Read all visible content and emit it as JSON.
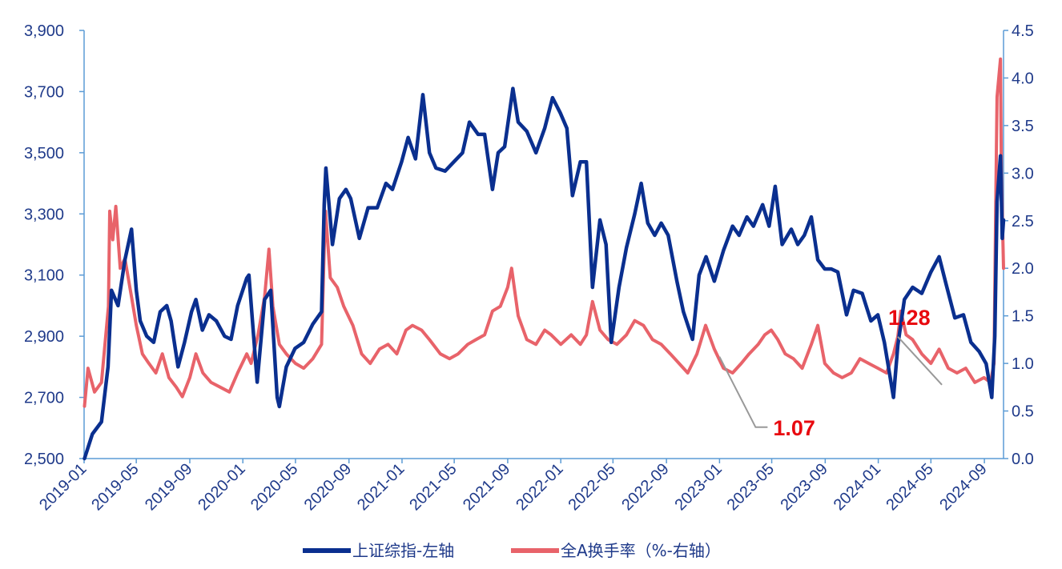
{
  "chart_data": {
    "type": "line",
    "title": "",
    "xlabel": "",
    "ylabel": "",
    "y2label": "",
    "x_range": [
      "2019-01",
      "2024-10"
    ],
    "x_ticks": [
      "2019-01",
      "2019-05",
      "2019-09",
      "2020-01",
      "2020-05",
      "2020-09",
      "2021-01",
      "2021-05",
      "2021-09",
      "2022-01",
      "2022-05",
      "2022-09",
      "2023-01",
      "2023-05",
      "2023-09",
      "2024-01",
      "2024-05",
      "2024-09"
    ],
    "ylim": [
      2500,
      3900
    ],
    "y_ticks": [
      2500,
      2700,
      2900,
      3100,
      3300,
      3500,
      3700,
      3900
    ],
    "y_tick_labels": [
      "2,500",
      "2,700",
      "2,900",
      "3,100",
      "3,300",
      "3,500",
      "3,700",
      "3,900"
    ],
    "y2lim": [
      0.0,
      4.5
    ],
    "y2_ticks": [
      0.0,
      0.5,
      1.0,
      1.5,
      2.0,
      2.5,
      3.0,
      3.5,
      4.0,
      4.5
    ],
    "y2_tick_labels": [
      "0.0",
      "0.5",
      "1.0",
      "1.5",
      "2.0",
      "2.5",
      "3.0",
      "3.5",
      "4.0",
      "4.5"
    ],
    "grid": false,
    "legend_position": "bottom",
    "series": [
      {
        "name": "上证综指-左轴",
        "axis": "left",
        "color": "#0a2f8f",
        "points": [
          [
            "2019-01-02",
            2500
          ],
          [
            "2019-01-20",
            2580
          ],
          [
            "2019-02-10",
            2620
          ],
          [
            "2019-02-25",
            2800
          ],
          [
            "2019-03-05",
            3050
          ],
          [
            "2019-03-20",
            3000
          ],
          [
            "2019-04-05",
            3150
          ],
          [
            "2019-04-20",
            3250
          ],
          [
            "2019-05-01",
            3050
          ],
          [
            "2019-05-10",
            2950
          ],
          [
            "2019-05-25",
            2900
          ],
          [
            "2019-06-10",
            2880
          ],
          [
            "2019-06-25",
            2980
          ],
          [
            "2019-07-10",
            3000
          ],
          [
            "2019-07-20",
            2950
          ],
          [
            "2019-08-05",
            2800
          ],
          [
            "2019-08-20",
            2880
          ],
          [
            "2019-09-05",
            2980
          ],
          [
            "2019-09-15",
            3020
          ],
          [
            "2019-09-30",
            2920
          ],
          [
            "2019-10-15",
            2970
          ],
          [
            "2019-11-01",
            2950
          ],
          [
            "2019-11-20",
            2900
          ],
          [
            "2019-12-05",
            2890
          ],
          [
            "2019-12-20",
            3000
          ],
          [
            "2020-01-10",
            3090
          ],
          [
            "2020-01-15",
            3100
          ],
          [
            "2020-02-03",
            2750
          ],
          [
            "2020-02-20",
            3020
          ],
          [
            "2020-03-05",
            3050
          ],
          [
            "2020-03-20",
            2700
          ],
          [
            "2020-03-25",
            2670
          ],
          [
            "2020-04-10",
            2800
          ],
          [
            "2020-04-30",
            2860
          ],
          [
            "2020-05-20",
            2880
          ],
          [
            "2020-06-10",
            2940
          ],
          [
            "2020-06-30",
            2980
          ],
          [
            "2020-07-06",
            3330
          ],
          [
            "2020-07-10",
            3450
          ],
          [
            "2020-07-25",
            3200
          ],
          [
            "2020-08-10",
            3350
          ],
          [
            "2020-08-25",
            3380
          ],
          [
            "2020-09-05",
            3350
          ],
          [
            "2020-09-25",
            3220
          ],
          [
            "2020-10-15",
            3320
          ],
          [
            "2020-11-05",
            3320
          ],
          [
            "2020-11-25",
            3400
          ],
          [
            "2020-12-10",
            3380
          ],
          [
            "2020-12-31",
            3470
          ],
          [
            "2021-01-15",
            3550
          ],
          [
            "2021-02-01",
            3480
          ],
          [
            "2021-02-18",
            3690
          ],
          [
            "2021-03-05",
            3500
          ],
          [
            "2021-03-20",
            3450
          ],
          [
            "2021-04-10",
            3440
          ],
          [
            "2021-04-30",
            3470
          ],
          [
            "2021-05-20",
            3500
          ],
          [
            "2021-06-05",
            3600
          ],
          [
            "2021-06-25",
            3560
          ],
          [
            "2021-07-10",
            3560
          ],
          [
            "2021-07-28",
            3380
          ],
          [
            "2021-08-10",
            3500
          ],
          [
            "2021-08-25",
            3520
          ],
          [
            "2021-09-13",
            3710
          ],
          [
            "2021-09-25",
            3600
          ],
          [
            "2021-10-15",
            3570
          ],
          [
            "2021-11-05",
            3500
          ],
          [
            "2021-11-25",
            3580
          ],
          [
            "2021-12-13",
            3680
          ],
          [
            "2021-12-31",
            3630
          ],
          [
            "2022-01-15",
            3580
          ],
          [
            "2022-01-28",
            3360
          ],
          [
            "2022-02-15",
            3470
          ],
          [
            "2022-03-01",
            3470
          ],
          [
            "2022-03-15",
            3060
          ],
          [
            "2022-04-01",
            3280
          ],
          [
            "2022-04-15",
            3200
          ],
          [
            "2022-04-27",
            2880
          ],
          [
            "2022-05-15",
            3060
          ],
          [
            "2022-06-01",
            3190
          ],
          [
            "2022-06-20",
            3300
          ],
          [
            "2022-07-05",
            3400
          ],
          [
            "2022-07-20",
            3270
          ],
          [
            "2022-08-05",
            3230
          ],
          [
            "2022-08-20",
            3270
          ],
          [
            "2022-09-05",
            3230
          ],
          [
            "2022-09-25",
            3080
          ],
          [
            "2022-10-10",
            2980
          ],
          [
            "2022-10-31",
            2890
          ],
          [
            "2022-11-15",
            3100
          ],
          [
            "2022-12-01",
            3160
          ],
          [
            "2022-12-20",
            3080
          ],
          [
            "2023-01-10",
            3180
          ],
          [
            "2023-01-31",
            3260
          ],
          [
            "2023-02-15",
            3230
          ],
          [
            "2023-03-05",
            3290
          ],
          [
            "2023-03-20",
            3260
          ],
          [
            "2023-04-10",
            3330
          ],
          [
            "2023-04-25",
            3260
          ],
          [
            "2023-05-09",
            3390
          ],
          [
            "2023-05-25",
            3200
          ],
          [
            "2023-06-15",
            3250
          ],
          [
            "2023-06-30",
            3200
          ],
          [
            "2023-07-15",
            3230
          ],
          [
            "2023-07-31",
            3290
          ],
          [
            "2023-08-15",
            3150
          ],
          [
            "2023-08-31",
            3120
          ],
          [
            "2023-09-15",
            3120
          ],
          [
            "2023-09-30",
            3110
          ],
          [
            "2023-10-20",
            2970
          ],
          [
            "2023-11-05",
            3050
          ],
          [
            "2023-11-25",
            3040
          ],
          [
            "2023-12-15",
            2950
          ],
          [
            "2023-12-31",
            2970
          ],
          [
            "2024-01-15",
            2880
          ],
          [
            "2024-02-05",
            2700
          ],
          [
            "2024-02-15",
            2870
          ],
          [
            "2024-03-01",
            3020
          ],
          [
            "2024-03-20",
            3060
          ],
          [
            "2024-04-10",
            3040
          ],
          [
            "2024-05-01",
            3110
          ],
          [
            "2024-05-20",
            3160
          ],
          [
            "2024-06-05",
            3070
          ],
          [
            "2024-06-25",
            2960
          ],
          [
            "2024-07-15",
            2970
          ],
          [
            "2024-08-01",
            2880
          ],
          [
            "2024-08-20",
            2850
          ],
          [
            "2024-09-05",
            2810
          ],
          [
            "2024-09-18",
            2700
          ],
          [
            "2024-09-25",
            2900
          ],
          [
            "2024-09-30",
            3340
          ],
          [
            "2024-10-08",
            3490
          ],
          [
            "2024-10-12",
            3220
          ],
          [
            "2024-10-15",
            3280
          ]
        ]
      },
      {
        "name": "全A换手率（%-右轴）",
        "axis": "right",
        "color": "#e8636a",
        "points": [
          [
            "2019-01-02",
            0.55
          ],
          [
            "2019-01-10",
            0.95
          ],
          [
            "2019-01-25",
            0.7
          ],
          [
            "2019-02-10",
            0.8
          ],
          [
            "2019-02-26",
            1.6
          ],
          [
            "2019-03-01",
            2.6
          ],
          [
            "2019-03-08",
            2.3
          ],
          [
            "2019-03-15",
            2.65
          ],
          [
            "2019-03-25",
            2.0
          ],
          [
            "2019-04-05",
            2.1
          ],
          [
            "2019-04-20",
            1.7
          ],
          [
            "2019-05-01",
            1.4
          ],
          [
            "2019-05-15",
            1.1
          ],
          [
            "2019-05-30",
            1.0
          ],
          [
            "2019-06-15",
            0.9
          ],
          [
            "2019-06-30",
            1.1
          ],
          [
            "2019-07-15",
            0.85
          ],
          [
            "2019-08-01",
            0.75
          ],
          [
            "2019-08-15",
            0.65
          ],
          [
            "2019-09-01",
            0.85
          ],
          [
            "2019-09-15",
            1.1
          ],
          [
            "2019-10-01",
            0.9
          ],
          [
            "2019-10-20",
            0.8
          ],
          [
            "2019-11-10",
            0.75
          ],
          [
            "2019-12-01",
            0.7
          ],
          [
            "2019-12-20",
            0.9
          ],
          [
            "2020-01-10",
            1.1
          ],
          [
            "2020-01-20",
            1.0
          ],
          [
            "2020-02-05",
            1.3
          ],
          [
            "2020-02-20",
            1.7
          ],
          [
            "2020-03-01",
            2.2
          ],
          [
            "2020-03-10",
            1.6
          ],
          [
            "2020-03-25",
            1.2
          ],
          [
            "2020-04-10",
            1.1
          ],
          [
            "2020-05-01",
            1.0
          ],
          [
            "2020-05-20",
            0.95
          ],
          [
            "2020-06-10",
            1.05
          ],
          [
            "2020-06-30",
            1.2
          ],
          [
            "2020-07-06",
            2.2
          ],
          [
            "2020-07-09",
            2.6
          ],
          [
            "2020-07-20",
            1.9
          ],
          [
            "2020-08-05",
            1.8
          ],
          [
            "2020-08-20",
            1.6
          ],
          [
            "2020-09-10",
            1.4
          ],
          [
            "2020-09-30",
            1.1
          ],
          [
            "2020-10-20",
            1.0
          ],
          [
            "2020-11-10",
            1.15
          ],
          [
            "2020-11-30",
            1.2
          ],
          [
            "2020-12-20",
            1.1
          ],
          [
            "2021-01-10",
            1.35
          ],
          [
            "2021-01-25",
            1.4
          ],
          [
            "2021-02-15",
            1.35
          ],
          [
            "2021-03-05",
            1.25
          ],
          [
            "2021-03-30",
            1.1
          ],
          [
            "2021-04-20",
            1.05
          ],
          [
            "2021-05-10",
            1.1
          ],
          [
            "2021-06-01",
            1.2
          ],
          [
            "2021-06-20",
            1.25
          ],
          [
            "2021-07-10",
            1.3
          ],
          [
            "2021-07-28",
            1.55
          ],
          [
            "2021-08-15",
            1.6
          ],
          [
            "2021-09-01",
            1.8
          ],
          [
            "2021-09-10",
            2.0
          ],
          [
            "2021-09-25",
            1.5
          ],
          [
            "2021-10-15",
            1.25
          ],
          [
            "2021-11-05",
            1.2
          ],
          [
            "2021-11-25",
            1.35
          ],
          [
            "2021-12-10",
            1.3
          ],
          [
            "2022-01-01",
            1.2
          ],
          [
            "2022-01-25",
            1.3
          ],
          [
            "2022-02-15",
            1.2
          ],
          [
            "2022-03-01",
            1.3
          ],
          [
            "2022-03-15",
            1.65
          ],
          [
            "2022-04-01",
            1.35
          ],
          [
            "2022-04-20",
            1.25
          ],
          [
            "2022-05-10",
            1.2
          ],
          [
            "2022-06-01",
            1.3
          ],
          [
            "2022-06-20",
            1.45
          ],
          [
            "2022-07-10",
            1.4
          ],
          [
            "2022-07-31",
            1.25
          ],
          [
            "2022-08-20",
            1.2
          ],
          [
            "2022-09-10",
            1.1
          ],
          [
            "2022-09-30",
            1.0
          ],
          [
            "2022-10-20",
            0.9
          ],
          [
            "2022-11-10",
            1.1
          ],
          [
            "2022-11-30",
            1.4
          ],
          [
            "2022-12-20",
            1.15
          ],
          [
            "2023-01-10",
            0.95
          ],
          [
            "2023-01-31",
            0.9
          ],
          [
            "2023-02-20",
            1.0
          ],
          [
            "2023-03-10",
            1.1
          ],
          [
            "2023-03-31",
            1.2
          ],
          [
            "2023-04-15",
            1.3
          ],
          [
            "2023-04-30",
            1.35
          ],
          [
            "2023-05-15",
            1.25
          ],
          [
            "2023-06-01",
            1.1
          ],
          [
            "2023-06-20",
            1.05
          ],
          [
            "2023-07-10",
            0.95
          ],
          [
            "2023-07-31",
            1.2
          ],
          [
            "2023-08-15",
            1.4
          ],
          [
            "2023-08-31",
            1.0
          ],
          [
            "2023-09-20",
            0.9
          ],
          [
            "2023-10-10",
            0.85
          ],
          [
            "2023-10-31",
            0.9
          ],
          [
            "2023-11-20",
            1.05
          ],
          [
            "2023-12-10",
            1.0
          ],
          [
            "2023-12-31",
            0.95
          ],
          [
            "2024-01-20",
            0.9
          ],
          [
            "2024-02-05",
            1.1
          ],
          [
            "2024-02-15",
            1.28
          ],
          [
            "2024-02-22",
            1.55
          ],
          [
            "2024-03-05",
            1.3
          ],
          [
            "2024-03-20",
            1.25
          ],
          [
            "2024-04-10",
            1.1
          ],
          [
            "2024-05-01",
            1.0
          ],
          [
            "2024-05-20",
            1.15
          ],
          [
            "2024-06-10",
            0.95
          ],
          [
            "2024-06-30",
            0.9
          ],
          [
            "2024-07-20",
            0.95
          ],
          [
            "2024-08-10",
            0.8
          ],
          [
            "2024-08-31",
            0.85
          ],
          [
            "2024-09-15",
            0.8
          ],
          [
            "2024-09-23",
            1.0
          ],
          [
            "2024-09-27",
            2.6
          ],
          [
            "2024-09-30",
            3.8
          ],
          [
            "2024-10-08",
            4.2
          ],
          [
            "2024-10-10",
            3.0
          ],
          [
            "2024-10-15",
            2.0
          ]
        ]
      }
    ],
    "annotations": [
      {
        "text": "1.07",
        "series": 1,
        "point": [
          "2023-01-01",
          1.07
        ],
        "label_position": "lower-right"
      },
      {
        "text": "1.28",
        "series": 1,
        "point": [
          "2024-02-15",
          1.28
        ],
        "label_position": "above"
      }
    ]
  }
}
